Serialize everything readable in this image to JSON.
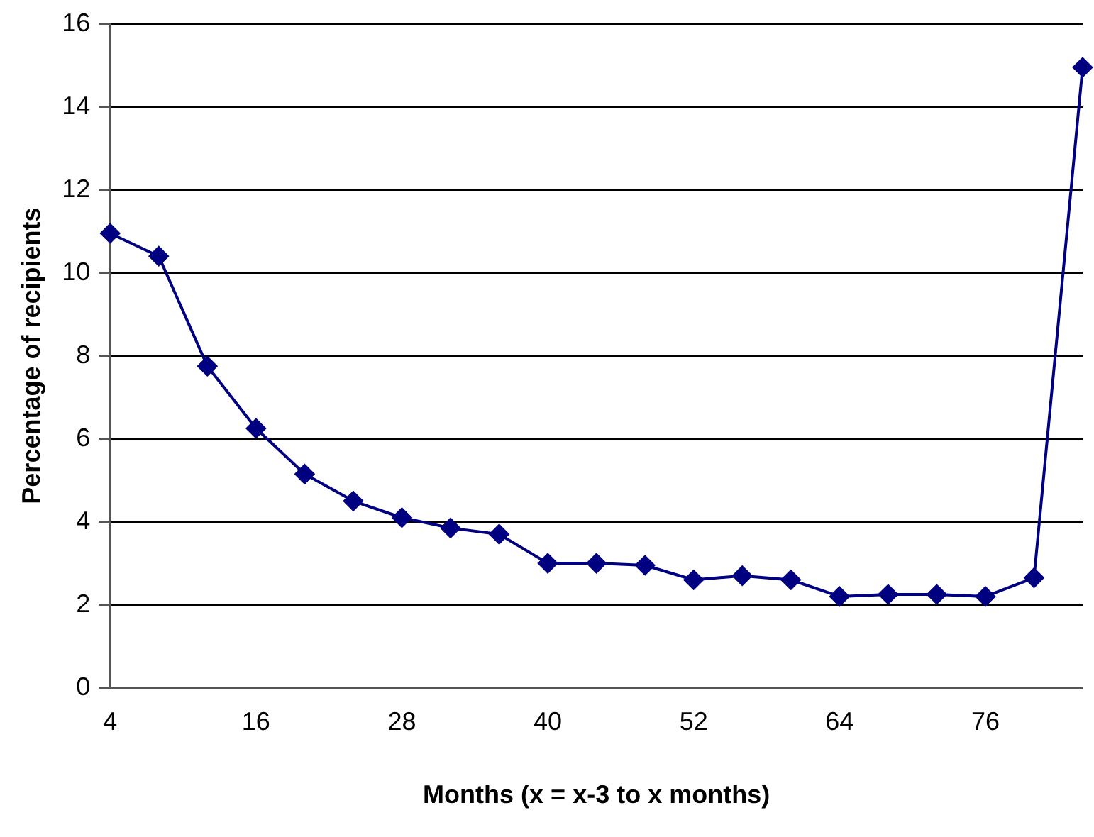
{
  "chart_data": {
    "type": "line",
    "xlabel": "Months (x = x-3 to x months)",
    "ylabel": "Percentage of recipients",
    "x": [
      4,
      8,
      12,
      16,
      20,
      24,
      28,
      32,
      36,
      40,
      44,
      48,
      52,
      56,
      60,
      64,
      68,
      72,
      76,
      80,
      84
    ],
    "series": [
      {
        "color": "#000080",
        "values": [
          10.95,
          10.4,
          7.75,
          6.25,
          5.15,
          4.5,
          4.1,
          3.85,
          3.7,
          3.0,
          3.0,
          2.95,
          2.6,
          2.7,
          2.6,
          2.2,
          2.25,
          2.25,
          2.2,
          2.65,
          14.95
        ]
      }
    ],
    "xlim": [
      4,
      84
    ],
    "xticks": [
      4,
      16,
      28,
      40,
      52,
      64,
      76
    ],
    "ylim": [
      0,
      16
    ],
    "yticks": [
      0,
      2,
      4,
      6,
      8,
      10,
      12,
      14,
      16
    ],
    "grid": "y",
    "legend": false,
    "marker": "diamond",
    "line_style": "solid"
  }
}
